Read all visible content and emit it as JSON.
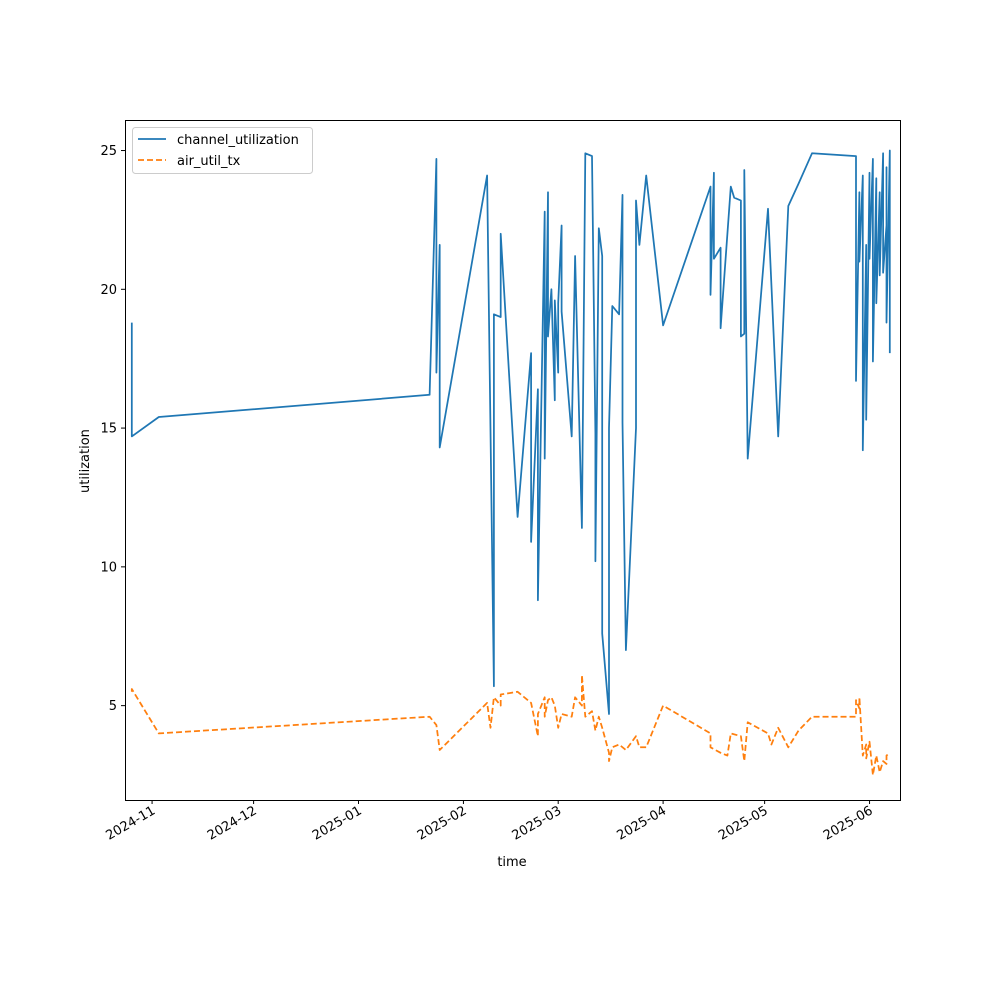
{
  "chart_data": {
    "type": "line",
    "title": "",
    "xlabel": "time",
    "ylabel": "utilization",
    "x_scale": "date",
    "xlim": [
      "2024-10-24",
      "2025-06-10"
    ],
    "ylim": [
      1.6,
      26.1
    ],
    "grid": false,
    "legend_position": "top-left",
    "x_ticks": [
      "2024-11",
      "2024-12",
      "2025-01",
      "2025-02",
      "2025-03",
      "2025-04",
      "2025-05",
      "2025-06"
    ],
    "x_tick_dates": [
      "2024-11-01",
      "2024-12-01",
      "2025-01-01",
      "2025-02-01",
      "2025-03-01",
      "2025-04-01",
      "2025-05-01",
      "2025-06-01"
    ],
    "y_ticks": [
      "5",
      "10",
      "15",
      "20",
      "25"
    ],
    "y_tick_values": [
      5,
      10,
      15,
      20,
      25
    ],
    "series": [
      {
        "name": "channel_utilization",
        "color": "#1f77b4",
        "style": "solid",
        "points": [
          [
            "2024-10-26",
            18.8
          ],
          [
            "2024-10-26",
            14.7
          ],
          [
            "2024-11-03",
            15.4
          ],
          [
            "2025-01-22",
            16.2
          ],
          [
            "2025-01-24",
            24.7
          ],
          [
            "2025-01-24",
            17.0
          ],
          [
            "2025-01-25",
            21.6
          ],
          [
            "2025-01-25",
            14.3
          ],
          [
            "2025-02-08",
            24.1
          ],
          [
            "2025-02-10",
            5.7
          ],
          [
            "2025-02-10",
            19.1
          ],
          [
            "2025-02-12",
            19.0
          ],
          [
            "2025-02-12",
            22.0
          ],
          [
            "2025-02-17",
            11.8
          ],
          [
            "2025-02-21",
            17.7
          ],
          [
            "2025-02-21",
            10.9
          ],
          [
            "2025-02-23",
            16.4
          ],
          [
            "2025-02-23",
            8.8
          ],
          [
            "2025-02-25",
            22.8
          ],
          [
            "2025-02-25",
            13.9
          ],
          [
            "2025-02-26",
            23.5
          ],
          [
            "2025-02-26",
            18.3
          ],
          [
            "2025-02-27",
            20.0
          ],
          [
            "2025-02-28",
            16.0
          ],
          [
            "2025-02-28",
            19.6
          ],
          [
            "2025-03-01",
            17.0
          ],
          [
            "2025-03-01",
            19.5
          ],
          [
            "2025-03-02",
            22.3
          ],
          [
            "2025-03-02",
            19.2
          ],
          [
            "2025-03-05",
            14.7
          ],
          [
            "2025-03-06",
            21.2
          ],
          [
            "2025-03-08",
            11.4
          ],
          [
            "2025-03-09",
            24.9
          ],
          [
            "2025-03-11",
            24.8
          ],
          [
            "2025-03-12",
            14.8
          ],
          [
            "2025-03-12",
            10.2
          ],
          [
            "2025-03-13",
            22.2
          ],
          [
            "2025-03-14",
            21.2
          ],
          [
            "2025-03-14",
            7.6
          ],
          [
            "2025-03-16",
            4.7
          ],
          [
            "2025-03-16",
            15.0
          ],
          [
            "2025-03-17",
            19.4
          ],
          [
            "2025-03-19",
            19.1
          ],
          [
            "2025-03-20",
            23.4
          ],
          [
            "2025-03-20",
            15.2
          ],
          [
            "2025-03-21",
            7.0
          ],
          [
            "2025-03-24",
            15.0
          ],
          [
            "2025-03-24",
            23.2
          ],
          [
            "2025-03-25",
            21.6
          ],
          [
            "2025-03-27",
            24.1
          ],
          [
            "2025-04-01",
            18.7
          ],
          [
            "2025-04-15",
            23.7
          ],
          [
            "2025-04-15",
            19.8
          ],
          [
            "2025-04-16",
            24.2
          ],
          [
            "2025-04-16",
            21.1
          ],
          [
            "2025-04-18",
            21.5
          ],
          [
            "2025-04-18",
            18.6
          ],
          [
            "2025-04-21",
            23.7
          ],
          [
            "2025-04-22",
            23.3
          ],
          [
            "2025-04-24",
            23.2
          ],
          [
            "2025-04-24",
            18.3
          ],
          [
            "2025-04-25",
            18.4
          ],
          [
            "2025-04-25",
            24.3
          ],
          [
            "2025-04-26",
            13.9
          ],
          [
            "2025-05-02",
            22.9
          ],
          [
            "2025-05-05",
            14.7
          ],
          [
            "2025-05-08",
            23.0
          ],
          [
            "2025-05-11",
            23.8
          ],
          [
            "2025-05-15",
            24.9
          ],
          [
            "2025-05-28",
            24.8
          ],
          [
            "2025-05-28",
            16.7
          ],
          [
            "2025-05-29",
            23.5
          ],
          [
            "2025-05-29",
            21.0
          ],
          [
            "2025-05-30",
            24.1
          ],
          [
            "2025-05-30",
            14.2
          ],
          [
            "2025-05-31",
            21.6
          ],
          [
            "2025-05-31",
            15.3
          ],
          [
            "2025-06-01",
            24.2
          ],
          [
            "2025-06-01",
            21.1
          ],
          [
            "2025-06-02",
            24.7
          ],
          [
            "2025-06-02",
            17.4
          ],
          [
            "2025-06-03",
            24.0
          ],
          [
            "2025-06-03",
            19.5
          ],
          [
            "2025-06-04",
            23.5
          ],
          [
            "2025-06-04",
            20.5
          ],
          [
            "2025-06-05",
            24.9
          ],
          [
            "2025-06-05",
            20.6
          ],
          [
            "2025-06-06",
            22.3
          ],
          [
            "2025-06-06",
            24.4
          ],
          [
            "2025-06-06",
            18.8
          ],
          [
            "2025-06-07",
            25.0
          ],
          [
            "2025-06-07",
            17.7
          ]
        ]
      },
      {
        "name": "air_util_tx",
        "color": "#ff7f0e",
        "style": "dashed",
        "points": [
          [
            "2024-10-26",
            5.5
          ],
          [
            "2024-10-26",
            5.6
          ],
          [
            "2024-11-03",
            4.0
          ],
          [
            "2025-01-22",
            4.6
          ],
          [
            "2025-01-24",
            4.3
          ],
          [
            "2025-01-25",
            3.4
          ],
          [
            "2025-02-08",
            5.1
          ],
          [
            "2025-02-09",
            4.2
          ],
          [
            "2025-02-10",
            5.3
          ],
          [
            "2025-02-12",
            5.0
          ],
          [
            "2025-02-12",
            5.4
          ],
          [
            "2025-02-17",
            5.5
          ],
          [
            "2025-02-21",
            5.1
          ],
          [
            "2025-02-23",
            3.9
          ],
          [
            "2025-02-23",
            4.7
          ],
          [
            "2025-02-25",
            5.3
          ],
          [
            "2025-02-25",
            4.6
          ],
          [
            "2025-02-26",
            5.2
          ],
          [
            "2025-02-27",
            5.3
          ],
          [
            "2025-02-28",
            5.0
          ],
          [
            "2025-03-01",
            4.2
          ],
          [
            "2025-03-02",
            4.7
          ],
          [
            "2025-03-05",
            4.6
          ],
          [
            "2025-03-06",
            5.3
          ],
          [
            "2025-03-08",
            5.0
          ],
          [
            "2025-03-08",
            6.1
          ],
          [
            "2025-03-09",
            4.6
          ],
          [
            "2025-03-11",
            4.8
          ],
          [
            "2025-03-12",
            4.1
          ],
          [
            "2025-03-13",
            4.6
          ],
          [
            "2025-03-14",
            4.2
          ],
          [
            "2025-03-16",
            3.3
          ],
          [
            "2025-03-16",
            3.0
          ],
          [
            "2025-03-17",
            3.5
          ],
          [
            "2025-03-19",
            3.6
          ],
          [
            "2025-03-21",
            3.4
          ],
          [
            "2025-03-24",
            3.9
          ],
          [
            "2025-03-25",
            3.5
          ],
          [
            "2025-03-27",
            3.5
          ],
          [
            "2025-04-01",
            5.0
          ],
          [
            "2025-04-15",
            4.0
          ],
          [
            "2025-04-15",
            3.5
          ],
          [
            "2025-04-18",
            3.3
          ],
          [
            "2025-04-20",
            3.2
          ],
          [
            "2025-04-21",
            4.0
          ],
          [
            "2025-04-24",
            3.9
          ],
          [
            "2025-04-25",
            3.0
          ],
          [
            "2025-04-26",
            4.4
          ],
          [
            "2025-05-02",
            4.0
          ],
          [
            "2025-05-03",
            3.6
          ],
          [
            "2025-05-05",
            4.2
          ],
          [
            "2025-05-08",
            3.5
          ],
          [
            "2025-05-11",
            4.1
          ],
          [
            "2025-05-15",
            4.6
          ],
          [
            "2025-05-28",
            4.6
          ],
          [
            "2025-05-28",
            5.2
          ],
          [
            "2025-05-29",
            4.9
          ],
          [
            "2025-05-29",
            5.3
          ],
          [
            "2025-05-30",
            3.2
          ],
          [
            "2025-05-31",
            3.6
          ],
          [
            "2025-05-31",
            3.1
          ],
          [
            "2025-06-01",
            3.7
          ],
          [
            "2025-06-02",
            2.5
          ],
          [
            "2025-06-03",
            3.2
          ],
          [
            "2025-06-04",
            2.6
          ],
          [
            "2025-06-05",
            3.0
          ],
          [
            "2025-06-06",
            2.9
          ],
          [
            "2025-06-06",
            3.2
          ],
          [
            "2025-06-07",
            3.3
          ]
        ]
      }
    ]
  }
}
